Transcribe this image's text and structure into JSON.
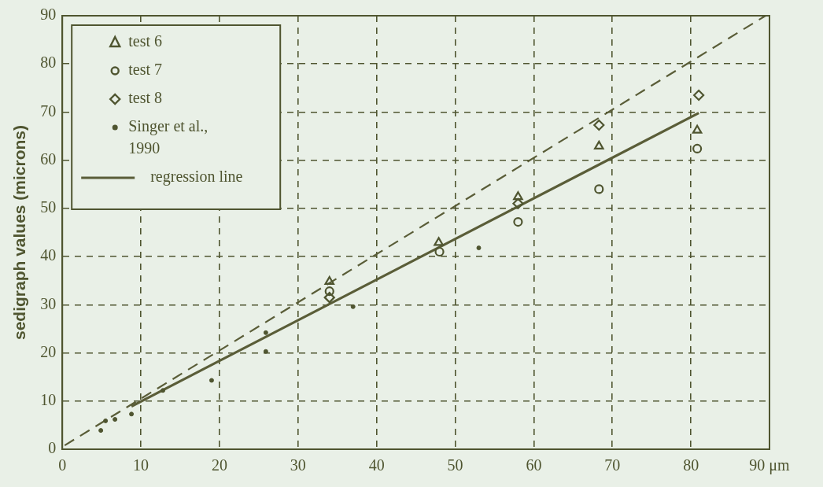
{
  "chart_data": {
    "type": "scatter",
    "ylabel": "sedigraph values (microns)",
    "xlim": [
      0,
      90
    ],
    "xticks": [
      0,
      10,
      20,
      30,
      40,
      50,
      60,
      70,
      80,
      {
        "value": 90,
        "label": "90 μm"
      }
    ],
    "ylim": [
      0,
      90
    ],
    "yticks": [
      0,
      10,
      20,
      30,
      40,
      50,
      60,
      70,
      80,
      90
    ],
    "grid": true,
    "legend": "top left",
    "series": [
      {
        "name": "test 6",
        "type": "scatter",
        "marker": "triangle",
        "color": "#4f5530",
        "x": [
          34,
          47.9,
          58,
          68.3,
          80.8
        ],
        "values": [
          34.8,
          42.9,
          52.4,
          62.9,
          66.2
        ]
      },
      {
        "name": "test 7",
        "type": "scatter",
        "marker": "circle",
        "color": "#4f5530",
        "x": [
          34,
          48,
          58,
          68.3,
          80.8
        ],
        "values": [
          32.8,
          41,
          47.2,
          54,
          62.4
        ]
      },
      {
        "name": "test 8",
        "type": "scatter",
        "marker": "diamond",
        "color": "#4f5530",
        "x": [
          34,
          48,
          58,
          68.3,
          81
        ],
        "values": [
          31.5,
          null,
          51,
          67.3,
          73.5
        ]
      },
      {
        "name": "Singer et al., 1990",
        "type": "scatter",
        "marker": "dot",
        "color": "#4f5530",
        "x": [
          4.9,
          5.5,
          6.7,
          8.8,
          12.8,
          19,
          25.9,
          25.9,
          37,
          53
        ],
        "values": [
          3.9,
          5.9,
          6.2,
          7.3,
          12.2,
          14.3,
          24.2,
          20.3,
          29.6,
          41.8
        ]
      },
      {
        "name": "regression line",
        "type": "line",
        "marker": "none",
        "line_style": "solid",
        "color": "#5a5d38",
        "x": [
          8.8,
          81
        ],
        "values": [
          8.9,
          69.8
        ]
      },
      {
        "type": "line",
        "marker": "none",
        "line_style": "dashed",
        "color": "#5a5d38",
        "x": [
          0.3,
          89.5
        ],
        "values": [
          0.8,
          90
        ]
      }
    ]
  }
}
